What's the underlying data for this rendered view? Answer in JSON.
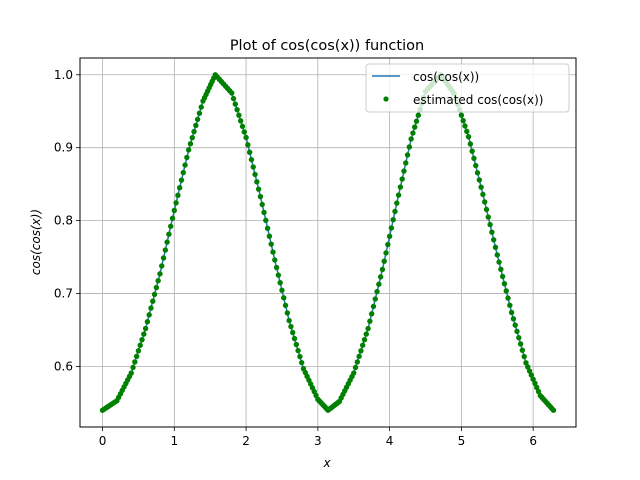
{
  "chart_data": {
    "type": "scatter",
    "title": "Plot of cos(cos(x)) function",
    "xlabel": "x",
    "ylabel": "cos(cos(x))",
    "xlim": [
      -0.314,
      6.597
    ],
    "ylim": [
      0.517,
      1.023
    ],
    "x_ticks": [
      0,
      1,
      2,
      3,
      4,
      5,
      6
    ],
    "x_tick_labels": [
      "0",
      "1",
      "2",
      "3",
      "4",
      "5",
      "6"
    ],
    "y_ticks": [
      0.6,
      0.7,
      0.8,
      0.9,
      1.0
    ],
    "y_tick_labels": [
      "0.6",
      "0.7",
      "0.8",
      "0.9",
      "1.0"
    ],
    "grid": true,
    "legend_position": "top-right",
    "legend": [
      {
        "label": "cos(cos(x))",
        "marker": "line",
        "color": "#1f77b4"
      },
      {
        "label": "estimated cos(cos(x))",
        "marker": "dot",
        "color": "#008000"
      }
    ],
    "series": [
      {
        "name": "cos(cos(x))",
        "style": "line",
        "color": "#1f77b4",
        "x": [
          0,
          0.2,
          0.4,
          0.6,
          0.8,
          1.0,
          1.2,
          1.4,
          1.571,
          1.8,
          2.0,
          2.2,
          2.4,
          2.6,
          2.8,
          3.0,
          3.142,
          3.3,
          3.5,
          3.7,
          3.9,
          4.1,
          4.3,
          4.5,
          4.712,
          4.9,
          5.1,
          5.3,
          5.5,
          5.7,
          5.9,
          6.1,
          6.283
        ],
        "y": [
          0.54,
          0.553,
          0.591,
          0.652,
          0.727,
          0.814,
          0.897,
          0.964,
          1.0,
          0.975,
          0.914,
          0.833,
          0.746,
          0.663,
          0.597,
          0.555,
          0.54,
          0.552,
          0.591,
          0.652,
          0.733,
          0.824,
          0.912,
          0.977,
          1.0,
          0.974,
          0.915,
          0.836,
          0.753,
          0.674,
          0.605,
          0.56,
          0.54
        ]
      },
      {
        "name": "estimated cos(cos(x))",
        "style": "dots",
        "color": "#008000",
        "x": [
          0,
          0.2,
          0.4,
          0.6,
          0.8,
          1.0,
          1.2,
          1.4,
          1.571,
          1.8,
          2.0,
          2.2,
          2.4,
          2.6,
          2.8,
          3.0,
          3.142,
          3.3,
          3.5,
          3.7,
          3.9,
          4.1,
          4.3,
          4.5,
          4.712,
          4.9,
          5.1,
          5.3,
          5.5,
          5.7,
          5.9,
          6.1,
          6.283
        ],
        "y": [
          0.54,
          0.553,
          0.591,
          0.652,
          0.727,
          0.814,
          0.897,
          0.964,
          1.0,
          0.975,
          0.914,
          0.833,
          0.746,
          0.663,
          0.597,
          0.555,
          0.54,
          0.552,
          0.591,
          0.652,
          0.733,
          0.824,
          0.912,
          0.977,
          1.0,
          0.974,
          0.915,
          0.836,
          0.753,
          0.674,
          0.605,
          0.56,
          0.54
        ]
      }
    ]
  }
}
